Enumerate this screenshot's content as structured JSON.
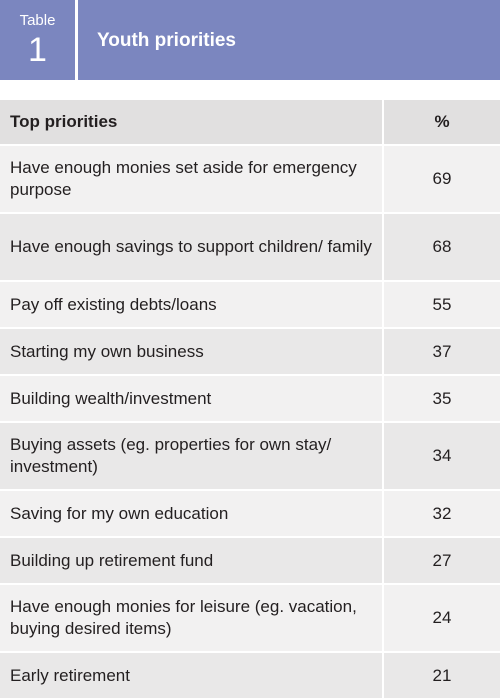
{
  "header": {
    "label_word": "Table",
    "label_number": "1",
    "title": "Youth priorities"
  },
  "table": {
    "columns": [
      "Top priorities",
      "%"
    ],
    "rows": [
      {
        "priority": "Have enough monies set aside for emergency purpose",
        "percent": "69"
      },
      {
        "priority": "Have enough savings to support children/ family",
        "percent": "68"
      },
      {
        "priority": "Pay off existing debts/loans",
        "percent": "55"
      },
      {
        "priority": "Starting my own business",
        "percent": "37"
      },
      {
        "priority": "Building wealth/investment",
        "percent": "35"
      },
      {
        "priority": "Buying assets (eg. properties for own stay/ investment)",
        "percent": "34"
      },
      {
        "priority": "Saving for my own education",
        "percent": "32"
      },
      {
        "priority": "Building up retirement fund",
        "percent": "27"
      },
      {
        "priority": "Have enough monies for leisure (eg. vacation, buying desired items)",
        "percent": "24"
      },
      {
        "priority": "Early retirement",
        "percent": "21"
      }
    ]
  }
}
